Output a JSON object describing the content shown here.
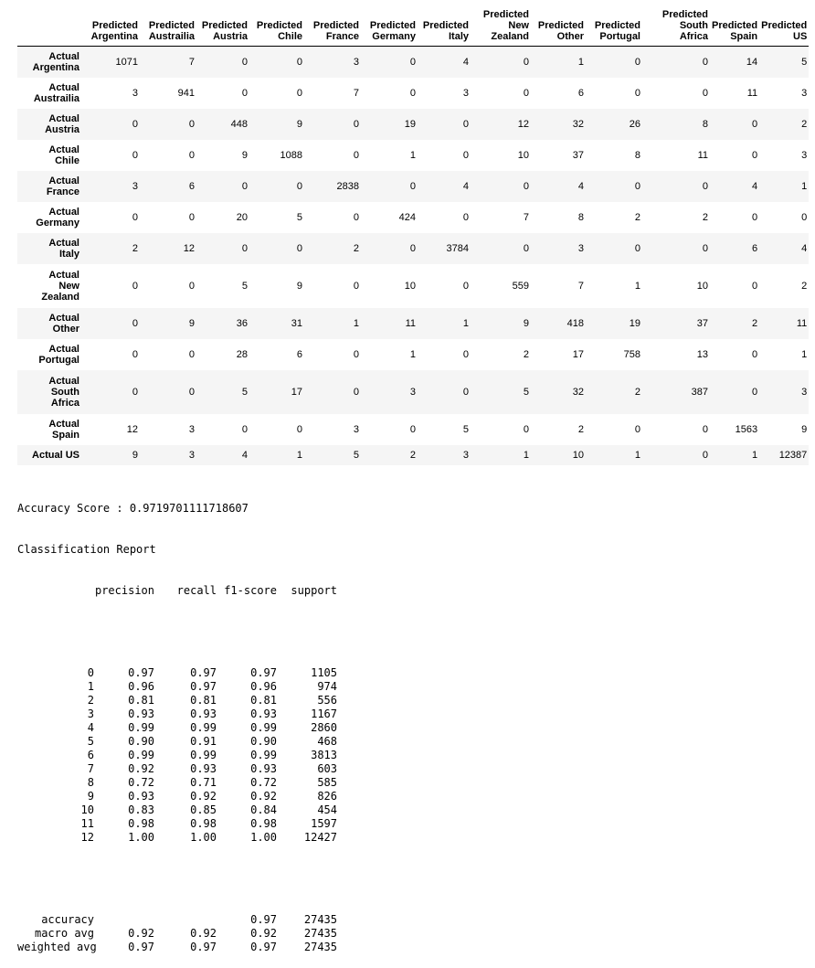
{
  "confusion_matrix": {
    "columns": [
      [
        "Predicted",
        "Argentina"
      ],
      [
        "Predicted",
        "Austrailia"
      ],
      [
        "Predicted",
        "Austria"
      ],
      [
        "Predicted",
        "Chile"
      ],
      [
        "Predicted",
        "France"
      ],
      [
        "Predicted",
        "Germany"
      ],
      [
        "Predicted",
        "Italy"
      ],
      [
        "Predicted",
        "New",
        "Zealand"
      ],
      [
        "Predicted",
        "Other"
      ],
      [
        "Predicted",
        "Portugal"
      ],
      [
        "Predicted",
        "South",
        "Africa"
      ],
      [
        "Predicted",
        "Spain"
      ],
      [
        "Predicted",
        "US"
      ]
    ],
    "rows": [
      {
        "label": [
          "Actual",
          "Argentina"
        ],
        "values": [
          "1071",
          "7",
          "0",
          "0",
          "3",
          "0",
          "4",
          "0",
          "1",
          "0",
          "0",
          "14",
          "5"
        ]
      },
      {
        "label": [
          "Actual",
          "Austrailia"
        ],
        "values": [
          "3",
          "941",
          "0",
          "0",
          "7",
          "0",
          "3",
          "0",
          "6",
          "0",
          "0",
          "11",
          "3"
        ]
      },
      {
        "label": [
          "Actual",
          "Austria"
        ],
        "values": [
          "0",
          "0",
          "448",
          "9",
          "0",
          "19",
          "0",
          "12",
          "32",
          "26",
          "8",
          "0",
          "2"
        ]
      },
      {
        "label": [
          "Actual",
          "Chile"
        ],
        "values": [
          "0",
          "0",
          "9",
          "1088",
          "0",
          "1",
          "0",
          "10",
          "37",
          "8",
          "11",
          "0",
          "3"
        ]
      },
      {
        "label": [
          "Actual",
          "France"
        ],
        "values": [
          "3",
          "6",
          "0",
          "0",
          "2838",
          "0",
          "4",
          "0",
          "4",
          "0",
          "0",
          "4",
          "1"
        ]
      },
      {
        "label": [
          "Actual",
          "Germany"
        ],
        "values": [
          "0",
          "0",
          "20",
          "5",
          "0",
          "424",
          "0",
          "7",
          "8",
          "2",
          "2",
          "0",
          "0"
        ]
      },
      {
        "label": [
          "Actual",
          "Italy"
        ],
        "values": [
          "2",
          "12",
          "0",
          "0",
          "2",
          "0",
          "3784",
          "0",
          "3",
          "0",
          "0",
          "6",
          "4"
        ]
      },
      {
        "label": [
          "Actual",
          "New",
          "Zealand"
        ],
        "values": [
          "0",
          "0",
          "5",
          "9",
          "0",
          "10",
          "0",
          "559",
          "7",
          "1",
          "10",
          "0",
          "2"
        ]
      },
      {
        "label": [
          "Actual",
          "Other"
        ],
        "values": [
          "0",
          "9",
          "36",
          "31",
          "1",
          "11",
          "1",
          "9",
          "418",
          "19",
          "37",
          "2",
          "11"
        ]
      },
      {
        "label": [
          "Actual",
          "Portugal"
        ],
        "values": [
          "0",
          "0",
          "28",
          "6",
          "0",
          "1",
          "0",
          "2",
          "17",
          "758",
          "13",
          "0",
          "1"
        ]
      },
      {
        "label": [
          "Actual",
          "South",
          "Africa"
        ],
        "values": [
          "0",
          "0",
          "5",
          "17",
          "0",
          "3",
          "0",
          "5",
          "32",
          "2",
          "387",
          "0",
          "3"
        ]
      },
      {
        "label": [
          "Actual",
          "Spain"
        ],
        "values": [
          "12",
          "3",
          "0",
          "0",
          "3",
          "0",
          "5",
          "0",
          "2",
          "0",
          "0",
          "1563",
          "9"
        ]
      },
      {
        "label": [
          "Actual US"
        ],
        "values": [
          "9",
          "3",
          "4",
          "1",
          "5",
          "2",
          "3",
          "1",
          "10",
          "1",
          "0",
          "1",
          "12387"
        ]
      }
    ]
  },
  "accuracy_line": "Accuracy Score : 0.9719701111718607",
  "report_title": "Classification Report",
  "report": {
    "header": [
      "",
      "precision",
      "recall",
      "f1-score",
      "support"
    ],
    "classes": [
      [
        "0",
        "0.97",
        "0.97",
        "0.97",
        "1105"
      ],
      [
        "1",
        "0.96",
        "0.97",
        "0.96",
        "974"
      ],
      [
        "2",
        "0.81",
        "0.81",
        "0.81",
        "556"
      ],
      [
        "3",
        "0.93",
        "0.93",
        "0.93",
        "1167"
      ],
      [
        "4",
        "0.99",
        "0.99",
        "0.99",
        "2860"
      ],
      [
        "5",
        "0.90",
        "0.91",
        "0.90",
        "468"
      ],
      [
        "6",
        "0.99",
        "0.99",
        "0.99",
        "3813"
      ],
      [
        "7",
        "0.92",
        "0.93",
        "0.93",
        "603"
      ],
      [
        "8",
        "0.72",
        "0.71",
        "0.72",
        "585"
      ],
      [
        "9",
        "0.93",
        "0.92",
        "0.92",
        "826"
      ],
      [
        "10",
        "0.83",
        "0.85",
        "0.84",
        "454"
      ],
      [
        "11",
        "0.98",
        "0.98",
        "0.98",
        "1597"
      ],
      [
        "12",
        "1.00",
        "1.00",
        "1.00",
        "12427"
      ]
    ],
    "summary": [
      [
        "accuracy",
        "",
        "",
        "0.97",
        "27435"
      ],
      [
        "macro avg",
        "0.92",
        "0.92",
        "0.92",
        "27435"
      ],
      [
        "weighted avg",
        "0.97",
        "0.97",
        "0.97",
        "27435"
      ]
    ]
  }
}
